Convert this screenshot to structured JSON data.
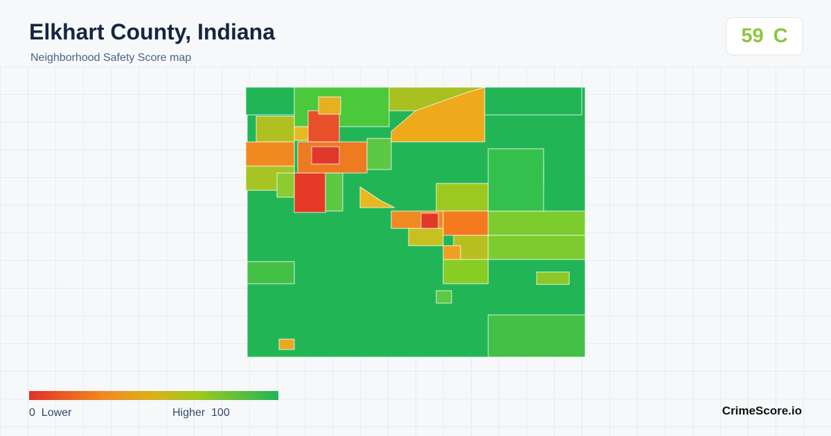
{
  "header": {
    "title": "Elkhart County, Indiana",
    "subtitle": "Neighborhood Safety Score map"
  },
  "score": {
    "value": "59",
    "grade": "C"
  },
  "legend": {
    "min": "0",
    "min_label": "Lower",
    "max_label": "Higher",
    "max": "100"
  },
  "brand": "CrimeScore.io"
}
